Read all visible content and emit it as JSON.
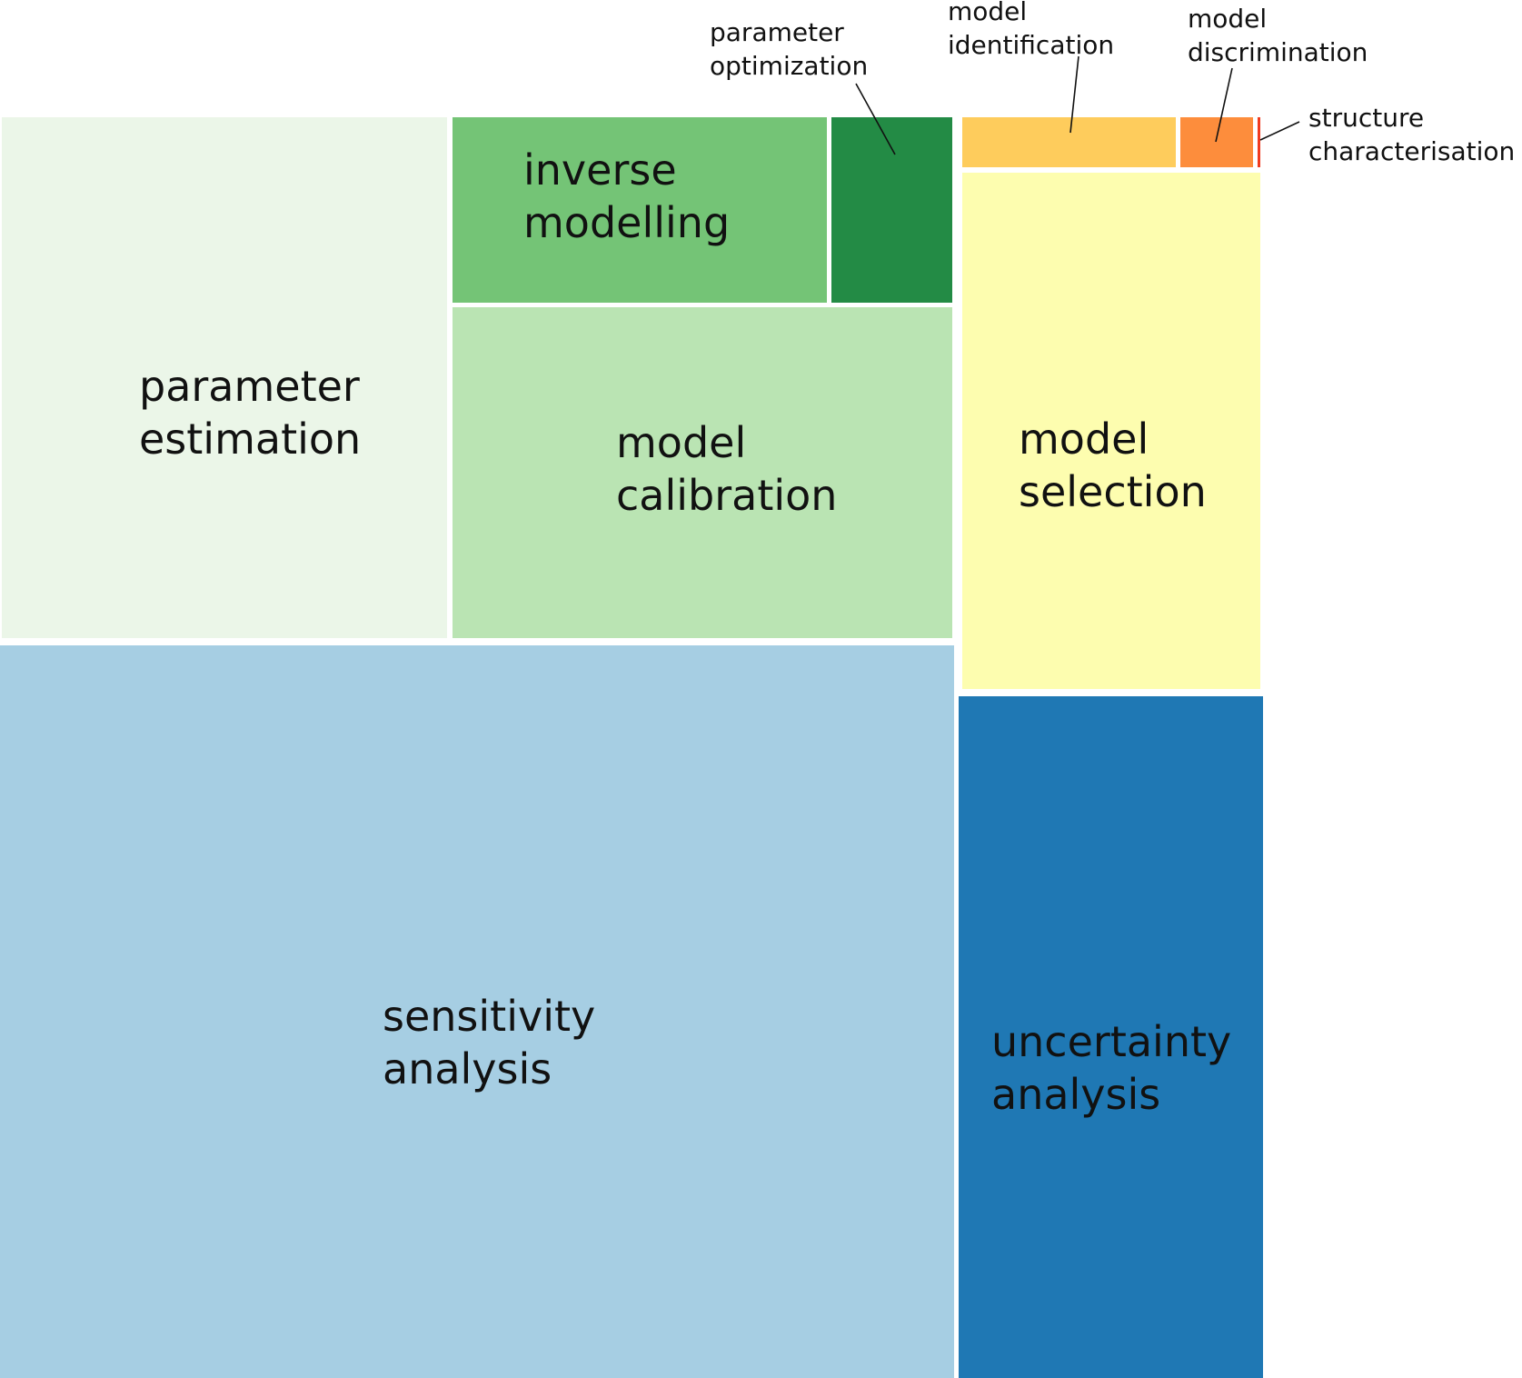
{
  "chart_data": {
    "type": "treemap",
    "cells": [
      {
        "id": "parameter-estimation",
        "lines": [
          "parameter",
          "estimation"
        ],
        "color": "#ebf6e8"
      },
      {
        "id": "inverse-modelling",
        "lines": [
          "inverse",
          "modelling"
        ],
        "color": "#74c476"
      },
      {
        "id": "parameter-optimization",
        "lines": [
          "parameter",
          "optimization"
        ],
        "color": "#238b45"
      },
      {
        "id": "model-calibration",
        "lines": [
          "model",
          "calibration"
        ],
        "color": "#bae4b3"
      },
      {
        "id": "sensitivity-analysis",
        "lines": [
          "sensitivity",
          "analysis"
        ],
        "color": "#a6cee3"
      },
      {
        "id": "model-identification",
        "lines": [
          "model",
          "identification"
        ],
        "color": "#fecc5c"
      },
      {
        "id": "model-discrimination",
        "lines": [
          "model",
          "discrimination"
        ],
        "color": "#fd8d3c"
      },
      {
        "id": "structure-characterisation",
        "lines": [
          "structure",
          "characterisation"
        ],
        "color": "#f03b20"
      },
      {
        "id": "model-selection",
        "lines": [
          "model",
          "selection"
        ],
        "color": "#fdfdaf"
      },
      {
        "id": "uncertainty-analysis",
        "lines": [
          "uncertainty",
          "analysis"
        ],
        "color": "#1f78b4"
      }
    ]
  }
}
